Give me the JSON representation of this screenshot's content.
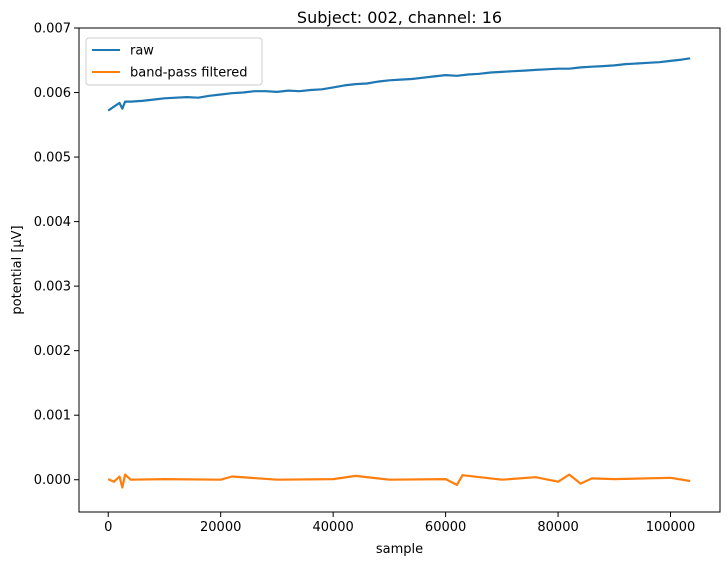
{
  "chart_data": {
    "type": "line",
    "title": "Subject: 002, channel: 16",
    "xlabel": "sample",
    "ylabel": "potential [µV]",
    "xlim": [
      -5200,
      108800
    ],
    "ylim": [
      -0.0005,
      0.007
    ],
    "xticks": [
      0,
      20000,
      40000,
      60000,
      80000,
      100000
    ],
    "xtick_labels": [
      "0",
      "20000",
      "40000",
      "60000",
      "80000",
      "100000"
    ],
    "yticks": [
      0.0,
      0.001,
      0.002,
      0.003,
      0.004,
      0.005,
      0.006,
      0.007
    ],
    "ytick_labels": [
      "0.000",
      "0.001",
      "0.002",
      "0.003",
      "0.004",
      "0.005",
      "0.006",
      "0.007"
    ],
    "grid": false,
    "legend_position": "top-left",
    "series": [
      {
        "name": "raw",
        "color": "#1f77b4",
        "x": [
          0,
          1000,
          2000,
          2500,
          3000,
          4000,
          6000,
          8000,
          10000,
          12000,
          14000,
          16000,
          18000,
          20000,
          22000,
          24000,
          26000,
          28000,
          30000,
          32000,
          34000,
          36000,
          38000,
          40000,
          42000,
          44000,
          46000,
          48000,
          50000,
          52000,
          54000,
          56000,
          58000,
          60000,
          62000,
          64000,
          66000,
          68000,
          70000,
          72000,
          74000,
          76000,
          78000,
          80000,
          82000,
          84000,
          86000,
          88000,
          90000,
          92000,
          94000,
          96000,
          98000,
          100000,
          102000,
          103500
        ],
        "values": [
          0.00572,
          0.00578,
          0.00584,
          0.00575,
          0.00586,
          0.00586,
          0.00587,
          0.00589,
          0.00591,
          0.00592,
          0.00593,
          0.00592,
          0.00595,
          0.00597,
          0.00599,
          0.006,
          0.00602,
          0.00602,
          0.00601,
          0.00603,
          0.00602,
          0.00604,
          0.00605,
          0.00608,
          0.00611,
          0.00613,
          0.00614,
          0.00617,
          0.00619,
          0.0062,
          0.00621,
          0.00623,
          0.00625,
          0.00627,
          0.00626,
          0.00628,
          0.00629,
          0.00631,
          0.00632,
          0.00633,
          0.00634,
          0.00635,
          0.00636,
          0.00637,
          0.00637,
          0.00639,
          0.0064,
          0.00641,
          0.00642,
          0.00644,
          0.00645,
          0.00646,
          0.00647,
          0.00649,
          0.00651,
          0.00653
        ]
      },
      {
        "name": "band-pass filtered",
        "color": "#ff7f0e",
        "x": [
          0,
          1000,
          2000,
          2500,
          3000,
          4000,
          10000,
          20000,
          22000,
          30000,
          40000,
          44000,
          50000,
          60000,
          62000,
          63000,
          70000,
          76000,
          80000,
          82000,
          84000,
          86000,
          90000,
          100000,
          103500
        ],
        "values": [
          1e-05,
          -3e-05,
          5e-05,
          -0.00012,
          8e-05,
          0.0,
          1e-05,
          0.0,
          5e-05,
          0.0,
          1e-05,
          6e-05,
          0.0,
          1e-05,
          -8e-05,
          7e-05,
          0.0,
          4e-05,
          -3e-05,
          8e-05,
          -6e-05,
          2e-05,
          1e-05,
          3e-05,
          -2e-05
        ]
      }
    ]
  }
}
